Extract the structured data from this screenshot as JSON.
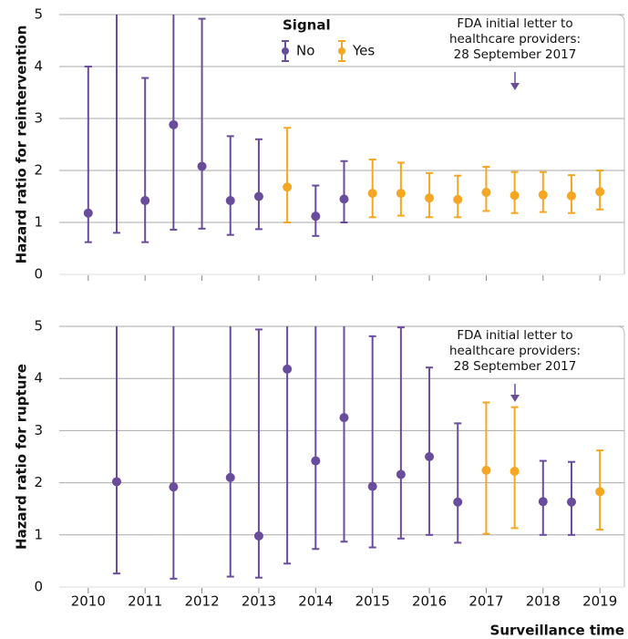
{
  "chart_data": [
    {
      "type": "errorbar",
      "ylabel": "Hazard ratio  for reintervention",
      "ylim": [
        0,
        5
      ],
      "yticks": [
        0,
        1,
        2,
        3,
        4,
        5
      ],
      "xlim": [
        2009.49,
        2019.43
      ],
      "grid": true,
      "legend_title": "Signal",
      "annotation": [
        "FDA initial letter to",
        "healthcare providers:",
        "28 September 2017"
      ],
      "series": [
        {
          "name": "No",
          "color": "#6a4c9c",
          "x": [
            2010,
            2010.5,
            2011,
            2011.5,
            2012,
            2012.5,
            2013,
            2014,
            2014.5
          ],
          "values": [
            1.18,
            null,
            1.42,
            2.88,
            2.08,
            1.42,
            1.5,
            1.12,
            1.45
          ],
          "lower": [
            0.62,
            0.8,
            0.62,
            0.86,
            0.88,
            0.76,
            0.87,
            0.74,
            1.0
          ],
          "upper": [
            4.0,
            null,
            3.78,
            null,
            4.92,
            2.66,
            2.6,
            1.71,
            2.18
          ]
        },
        {
          "name": "Yes",
          "color": "#f5a623",
          "x": [
            2013.5,
            2015,
            2015.5,
            2016,
            2016.5,
            2017,
            2017.5,
            2018,
            2018.5,
            2019
          ],
          "values": [
            1.68,
            1.56,
            1.56,
            1.47,
            1.44,
            1.58,
            1.52,
            1.53,
            1.51,
            1.59
          ],
          "lower": [
            1.0,
            1.1,
            1.13,
            1.1,
            1.1,
            1.22,
            1.18,
            1.2,
            1.18,
            1.25
          ],
          "upper": [
            2.82,
            2.21,
            2.15,
            1.95,
            1.9,
            2.07,
            1.97,
            1.97,
            1.91,
            2.0
          ]
        }
      ]
    },
    {
      "type": "errorbar",
      "ylabel": "Hazard ratio for rupture",
      "ylim": [
        0,
        5
      ],
      "yticks": [
        0,
        1,
        2,
        3,
        4,
        5
      ],
      "xlim": [
        2009.49,
        2019.43
      ],
      "grid": true,
      "xticks": [
        2010,
        2011,
        2012,
        2013,
        2014,
        2015,
        2016,
        2017,
        2018,
        2019
      ],
      "xlabel": "Surveillance time",
      "annotation": [
        "FDA initial letter to",
        "healthcare providers:",
        "28 September 2017"
      ],
      "series": [
        {
          "name": "No",
          "color": "#6a4c9c",
          "x": [
            2010.5,
            2011.5,
            2012.5,
            2013,
            2013.5,
            2014,
            2014.5,
            2015,
            2015.5,
            2016,
            2016.5,
            2018,
            2018.5
          ],
          "values": [
            2.02,
            1.92,
            2.1,
            0.98,
            4.18,
            2.42,
            3.25,
            1.93,
            2.16,
            2.5,
            1.63,
            1.64,
            1.63
          ],
          "lower": [
            0.26,
            0.16,
            0.2,
            0.18,
            0.45,
            0.73,
            0.87,
            0.76,
            0.93,
            1.0,
            0.85,
            1.0,
            1.0
          ],
          "upper": [
            null,
            null,
            null,
            4.94,
            null,
            null,
            null,
            4.81,
            4.98,
            4.21,
            3.14,
            2.42,
            2.4
          ]
        },
        {
          "name": "Yes",
          "color": "#f5a623",
          "x": [
            2017,
            2017.5,
            2019
          ],
          "values": [
            2.24,
            2.22,
            1.83
          ],
          "lower": [
            1.02,
            1.13,
            1.1
          ],
          "upper": [
            3.54,
            3.45,
            2.62
          ]
        }
      ]
    }
  ]
}
